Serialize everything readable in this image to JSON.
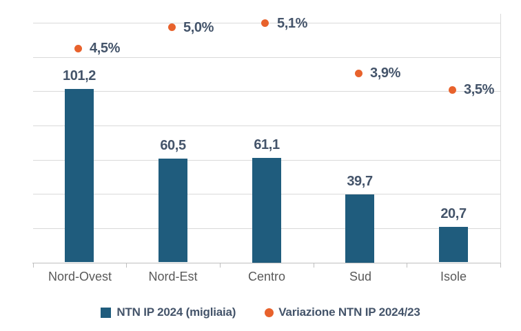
{
  "chart_data": {
    "type": "combo_bar_point",
    "title": "",
    "xlabel": "",
    "ylabel": "",
    "categories": [
      "Nord-Ovest",
      "Nord-Est",
      "Centro",
      "Sud",
      "Isole"
    ],
    "series": [
      {
        "name": "NTN IP 2024 (migliaia)",
        "type": "bar",
        "axis": "primary",
        "color": "#1F5C7D",
        "values": [
          101.2,
          60.5,
          61.1,
          39.7,
          20.7
        ],
        "labels": [
          "101,2",
          "60,5",
          "61,1",
          "39,7",
          "20,7"
        ]
      },
      {
        "name": "Variazione NTN IP 2024/23",
        "type": "point",
        "axis": "secondary",
        "color": "#E8622C",
        "values": [
          4.5,
          5.0,
          5.1,
          3.9,
          3.5
        ],
        "labels": [
          "4,5%",
          "5,0%",
          "5,1%",
          "3,9%",
          "3,5%"
        ]
      }
    ],
    "y1lim": [
      0,
      145
    ],
    "y1_major_unit": 20,
    "gridline_values": [
      20,
      40,
      60,
      80,
      100,
      120,
      140
    ],
    "y2lim": [
      -0.7,
      5.3
    ],
    "grid": "horizontal-only",
    "value_axis_labels": "hidden",
    "legend_position": "bottom"
  },
  "colors": {
    "bar": "#1F5C7D",
    "point": "#E8622C",
    "data_label": "#44546A",
    "category_label": "#595959",
    "gridline": "#D9D9D9",
    "axis_line": "#BFBFBF",
    "background": "#FFFFFF"
  }
}
